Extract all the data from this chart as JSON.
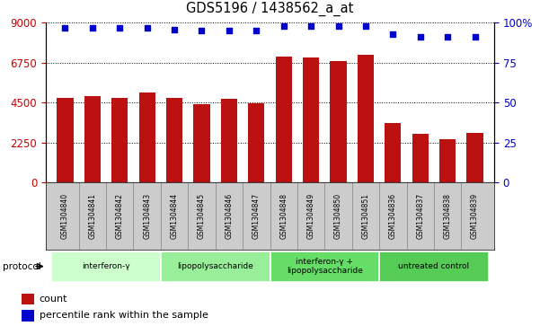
{
  "title": "GDS5196 / 1438562_a_at",
  "samples": [
    "GSM1304840",
    "GSM1304841",
    "GSM1304842",
    "GSM1304843",
    "GSM1304844",
    "GSM1304845",
    "GSM1304846",
    "GSM1304847",
    "GSM1304848",
    "GSM1304849",
    "GSM1304850",
    "GSM1304851",
    "GSM1304836",
    "GSM1304837",
    "GSM1304838",
    "GSM1304839"
  ],
  "counts": [
    4780,
    4870,
    4780,
    5050,
    4780,
    4400,
    4700,
    4450,
    7100,
    7050,
    6850,
    7200,
    3350,
    2750,
    2430,
    2820
  ],
  "percentiles": [
    97,
    97,
    97,
    97,
    96,
    95,
    95,
    95,
    98,
    98,
    98,
    98,
    93,
    91,
    91,
    91
  ],
  "groups": [
    {
      "label": "interferon-γ",
      "start": 0,
      "end": 4,
      "color": "#ccffcc"
    },
    {
      "label": "lipopolysaccharide",
      "start": 4,
      "end": 8,
      "color": "#99ee99"
    },
    {
      "label": "interferon-γ +\nlipopolysaccharide",
      "start": 8,
      "end": 12,
      "color": "#66dd66"
    },
    {
      "label": "untreated control",
      "start": 12,
      "end": 16,
      "color": "#55cc55"
    }
  ],
  "bar_color": "#bb1111",
  "dot_color": "#0000cc",
  "left_axis_color": "#cc0000",
  "right_axis_color": "#0000cc",
  "ylim_left": [
    0,
    9000
  ],
  "ylim_right": [
    0,
    100
  ],
  "yticks_left": [
    0,
    2250,
    4500,
    6750,
    9000
  ],
  "yticks_right": [
    0,
    25,
    50,
    75,
    100
  ],
  "label_bg_color": "#cccccc",
  "grid_color": "#000000",
  "bar_width": 0.6
}
